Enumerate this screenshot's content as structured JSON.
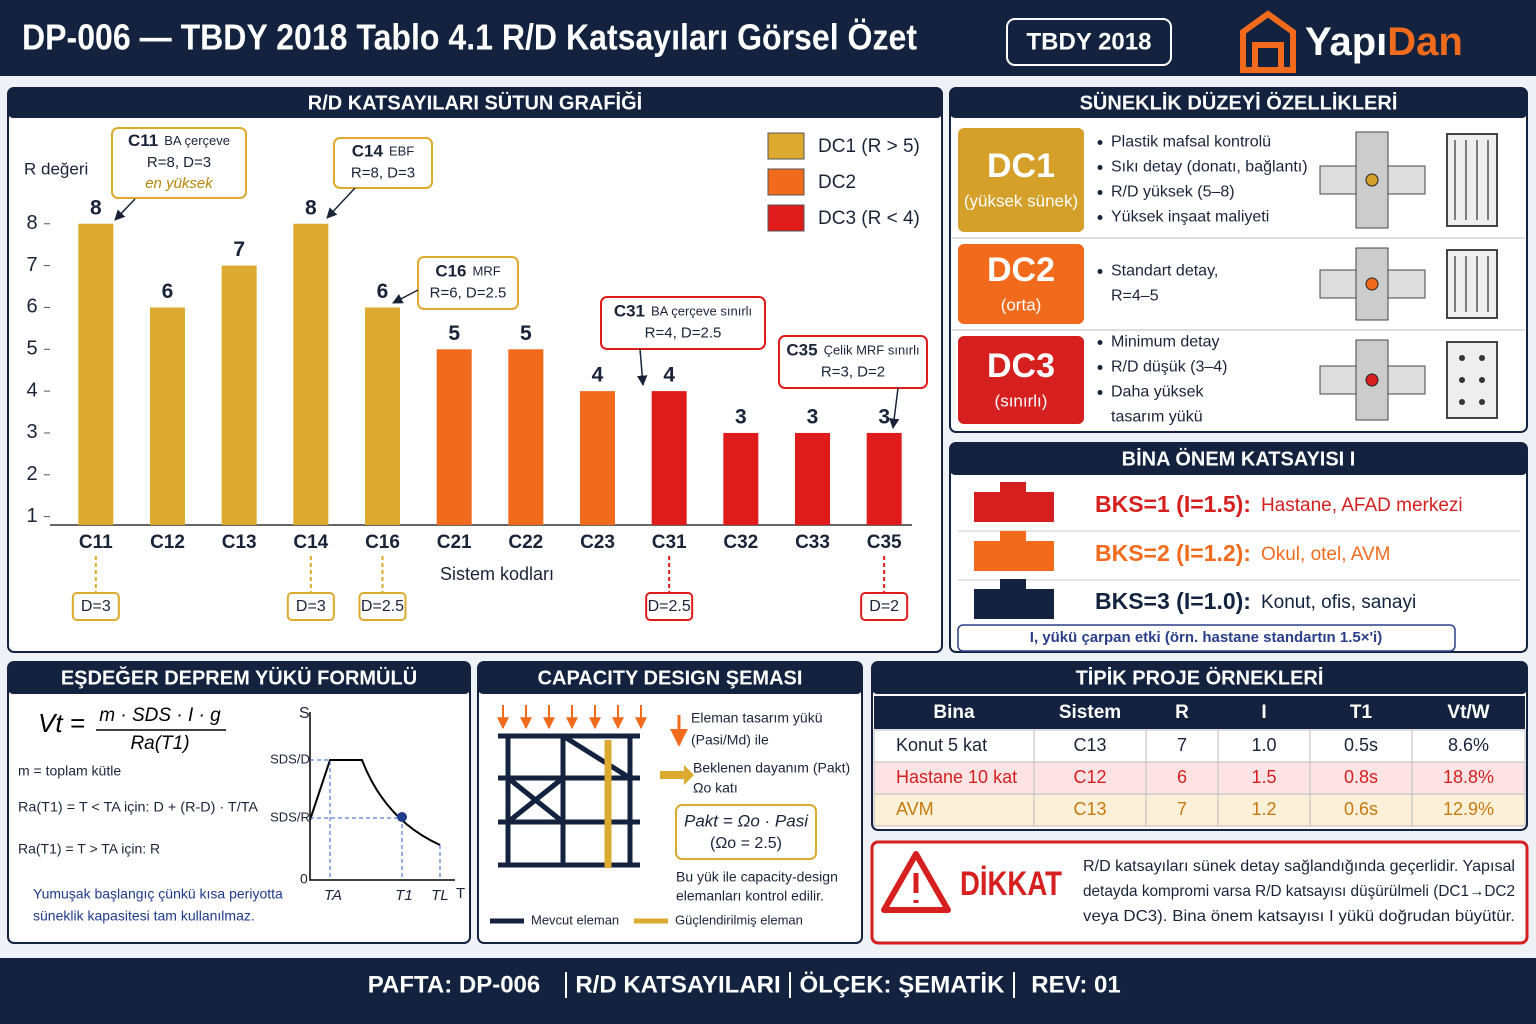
{
  "header": {
    "title": "DP-006 — TBDY 2018 Tablo 4.1 R/D Katsayıları Görsel Özet",
    "badge": "TBDY 2018",
    "logo": [
      "Yapı",
      "Dan"
    ]
  },
  "chart_data": {
    "type": "bar",
    "title": "R/D KATSAYILARI SÜTUN GRAFİĞİ",
    "y_label": "R değeri",
    "x_label": "Sistem kodları",
    "categories": [
      "C11",
      "C12",
      "C13",
      "C14",
      "C16",
      "C21",
      "C22",
      "C23",
      "C31",
      "C32",
      "C33",
      "C35"
    ],
    "series": [
      {
        "name": "DC1 (R > 5)",
        "color": "#dcaa2e",
        "values": [
          8,
          6,
          7,
          8,
          6,
          null,
          null,
          null,
          null,
          null,
          null,
          null
        ]
      },
      {
        "name": "DC2",
        "color": "#f26b1d",
        "values": [
          null,
          null,
          null,
          null,
          null,
          5,
          5,
          4,
          null,
          null,
          null,
          null
        ]
      },
      {
        "name": "DC3 (R < 4)",
        "color": "#e01b1b",
        "values": [
          null,
          null,
          null,
          null,
          null,
          null,
          null,
          null,
          4,
          3,
          3,
          3
        ]
      }
    ],
    "ylim": [
      0.8,
      9.5
    ],
    "yticks": [
      1,
      2,
      3,
      4,
      5,
      6,
      7,
      8
    ],
    "grid": false,
    "callouts": [
      {
        "code": "C11",
        "desc": "BA çerçeve",
        "params": "R=8, D=3",
        "note": "en yüksek"
      },
      {
        "code": "C14",
        "desc": "EBF",
        "params": "R=8, D=3"
      },
      {
        "code": "C16",
        "desc": "MRF",
        "params": "R=6, D=2.5"
      },
      {
        "code": "C31",
        "desc": "BA çerçeve sınırlı",
        "params": "R=4, D=2.5"
      },
      {
        "code": "C35",
        "desc": "Çelik MRF sınırlı",
        "params": "R=3, D=2"
      }
    ],
    "d_labels": [
      "D=3",
      null,
      null,
      "D=3",
      "D=2.5",
      null,
      null,
      null,
      "D=2.5",
      null,
      null,
      "D=2"
    ]
  },
  "ductility": {
    "title": "SÜNEKLİK DÜZEYİ ÖZELLİKLERİ",
    "levels": [
      {
        "name": "DC1",
        "sub": "(yüksek sünek)",
        "items": [
          [
            "Plastik mafsal kontrolü"
          ],
          [
            "Sıkı detay (donatı, bağlantı)"
          ],
          [
            "R/D yüksek (5–8)"
          ],
          [
            "Yüksek inşaat maliyeti"
          ]
        ]
      },
      {
        "name": "DC2",
        "sub": "(orta)",
        "items": [
          [
            "Standart detay,",
            "R=4–5"
          ]
        ]
      },
      {
        "name": "DC3",
        "sub": "(sınırlı)",
        "items": [
          [
            "Minimum detay"
          ],
          [
            "R/D düşük (3–4)"
          ],
          [
            "Daha yüksek",
            "tasarım yükü"
          ]
        ]
      }
    ]
  },
  "importance": {
    "title": "BİNA ÖNEM KATSAYISI I",
    "rows": [
      {
        "label": "BKS=1 (I=1.5):",
        "desc": "Hastane, AFAD merkezi"
      },
      {
        "label": "BKS=2 (I=1.2):",
        "desc": "Okul, otel, AVM"
      },
      {
        "label": "BKS=3 (I=1.0):",
        "desc": "Konut, ofis, sanayi"
      }
    ],
    "note": "I, yükü çarpan etki (örn. hastane standartın 1.5×'i)"
  },
  "formula": {
    "title": "EŞDEĞER DEPREM YÜKÜ FORMÜLÜ",
    "lhs": "Vt =",
    "numerator": "m · SDS · I · g",
    "denominator": "Ra(T1)",
    "lines": [
      "m = toplam kütle",
      "Ra(T1) = T < TA için: D + (R-D) · T/TA",
      "Ra(T1) = T > TA için: R"
    ],
    "note": [
      "Yumuşak başlangıç çünkü kısa periyotta",
      "süneklik kapasitesi tam kullanılmaz."
    ],
    "spectrum_labels": {
      "y": "S",
      "sds_d": "SDS/D",
      "sds_r": "SDS/R",
      "origin": "0",
      "ta": "TA",
      "t1": "T1",
      "tl": "TL",
      "x": "T"
    }
  },
  "capacity": {
    "title": "CAPACITY DESIGN ŞEMASI",
    "notes": [
      [
        "Eleman tasarım yükü",
        "(Pasi/Md) ile"
      ],
      [
        "Beklenen dayanım (Pakt)",
        "Ωo katı"
      ]
    ],
    "box": [
      "Pakt = Ωo · Pasi",
      "(Ωo = 2.5)"
    ],
    "check": [
      "Bu yük ile capacity-design",
      "elemanları kontrol edilir."
    ],
    "legend": [
      "Mevcut eleman",
      "Güçlendirilmiş eleman"
    ]
  },
  "projects": {
    "title": "TİPİK PROJE ÖRNEKLERİ",
    "columns": [
      "Bina",
      "Sistem",
      "R",
      "I",
      "T1",
      "Vt/W"
    ],
    "rows": [
      [
        "Konut 5 kat",
        "C13",
        7,
        "1.0",
        "0.5s",
        "8.6%"
      ],
      [
        "Hastane 10 kat",
        "C12",
        6,
        "1.5",
        "0.8s",
        "18.8%"
      ],
      [
        "AVM",
        "C13",
        7,
        "1.2",
        "0.6s",
        "12.9%"
      ]
    ]
  },
  "warning": {
    "title": "DİKKAT",
    "lines": [
      "R/D katsayıları sünek detay sağlandığında geçerlidir. Yapısal",
      "detayda kompromi varsa R/D katsayısı düşürülmeli (DC1→DC2",
      "veya DC3). Bina önem katsayısı I yükü doğrudan büyütür."
    ]
  },
  "footer": {
    "items": [
      "PAFTA: DP-006",
      "R/D KATSAYILARI",
      "ÖLÇEK: ŞEMATİK",
      "REV: 01"
    ]
  }
}
